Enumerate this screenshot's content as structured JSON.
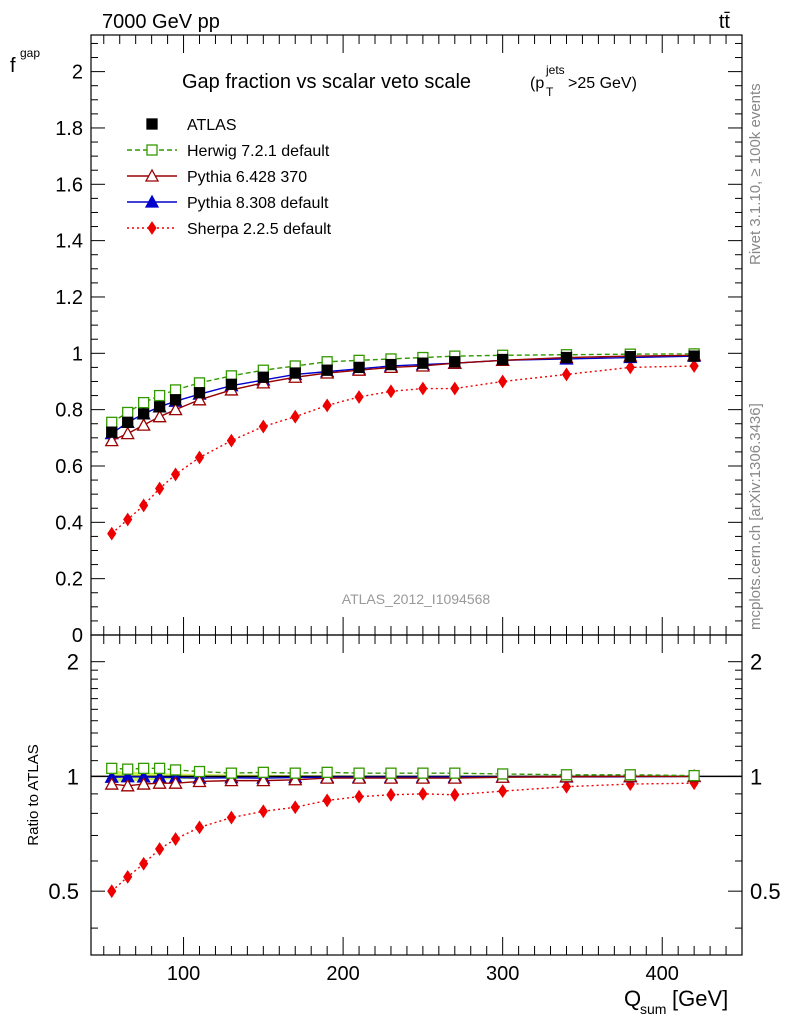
{
  "header": {
    "energy_label": "7000 GeV pp",
    "process_label": "tt̄"
  },
  "side_labels": {
    "rivet": "Rivet 3.1.10, ≥ 100k events",
    "mcplots": "mcplots.cern.ch [arXiv:1306.3436]"
  },
  "analysis_id": "ATLAS_2012_I1094568",
  "chart_data": [
    {
      "type": "line",
      "panel": "main",
      "title": "Gap fraction vs scalar veto scale",
      "title_suffix": {
        "p": "(p",
        "sub": "T",
        "sup": "jets",
        "rest": ">25 GeV)"
      },
      "ylabel": {
        "main": "f",
        "sub": "gap"
      },
      "xlim": [
        42,
        450
      ],
      "ylim": [
        0,
        2.13
      ],
      "yticks": [
        0,
        0.2,
        0.4,
        0.6,
        0.8,
        1,
        1.2,
        1.4,
        1.6,
        1.8,
        2
      ],
      "ytick_labels": [
        "0",
        "0.2",
        "0.4",
        "0.6",
        "0.8",
        "1",
        "1.2",
        "1.4",
        "1.6",
        "1.8",
        "2"
      ],
      "x": [
        55,
        65,
        75,
        85,
        95,
        110,
        130,
        150,
        170,
        190,
        210,
        230,
        250,
        270,
        300,
        340,
        380,
        420
      ],
      "legend_position": "top-left",
      "series": [
        {
          "name": "ATLAS",
          "color": "#000000",
          "marker": "filled-square",
          "line": "none",
          "values": [
            0.72,
            0.755,
            0.785,
            0.81,
            0.835,
            0.86,
            0.89,
            0.915,
            0.93,
            0.94,
            0.95,
            0.96,
            0.965,
            0.97,
            0.978,
            0.985,
            0.988,
            0.99
          ]
        },
        {
          "name": "Herwig 7.2.1 default",
          "color": "#339900",
          "marker": "open-square",
          "line": "dashed",
          "values": [
            0.755,
            0.79,
            0.825,
            0.85,
            0.87,
            0.895,
            0.92,
            0.94,
            0.955,
            0.97,
            0.975,
            0.98,
            0.985,
            0.99,
            0.993,
            0.995,
            0.997,
            0.998
          ]
        },
        {
          "name": "Pythia 6.428 370",
          "color": "#990000",
          "marker": "open-triangle",
          "line": "solid",
          "values": [
            0.69,
            0.715,
            0.745,
            0.775,
            0.8,
            0.835,
            0.87,
            0.895,
            0.915,
            0.93,
            0.94,
            0.95,
            0.955,
            0.965,
            0.975,
            0.985,
            0.99,
            0.993
          ]
        },
        {
          "name": "Pythia 8.308 default",
          "color": "#0000cc",
          "marker": "filled-triangle",
          "line": "solid",
          "values": [
            0.715,
            0.755,
            0.785,
            0.81,
            0.83,
            0.855,
            0.885,
            0.905,
            0.925,
            0.935,
            0.945,
            0.955,
            0.96,
            0.965,
            0.975,
            0.98,
            0.985,
            0.99
          ]
        },
        {
          "name": "Sherpa 2.2.5 default",
          "color": "#ee0000",
          "marker": "filled-diamond",
          "line": "dotted",
          "values": [
            0.36,
            0.41,
            0.46,
            0.52,
            0.57,
            0.63,
            0.69,
            0.74,
            0.775,
            0.815,
            0.845,
            0.865,
            0.875,
            0.875,
            0.9,
            0.925,
            0.95,
            0.955
          ]
        }
      ]
    },
    {
      "type": "line",
      "panel": "ratio",
      "ylabel": "Ratio to ATLAS",
      "xlabel": {
        "main": "Q",
        "sub": "sum",
        "rest": " [GeV]"
      },
      "xlim": [
        42,
        450
      ],
      "xticks": [
        100,
        200,
        300,
        400
      ],
      "xtick_labels": [
        "100",
        "200",
        "300",
        "400"
      ],
      "ylim": [
        0.34,
        2.35
      ],
      "yscale": "log",
      "yticks": [
        0.5,
        1,
        2
      ],
      "ytick_labels": [
        "0.5",
        "1",
        "2"
      ],
      "reference_band": {
        "color": "#ccf25a",
        "upper": [
          1.035,
          1.03,
          1.025,
          1.02,
          1.018,
          1.015,
          1.012,
          1.01,
          1.008,
          1.007,
          1.006,
          1.005,
          1.005,
          1.005,
          1.004,
          1.004,
          1.004,
          1.004
        ]
      },
      "x": [
        55,
        65,
        75,
        85,
        95,
        110,
        130,
        150,
        170,
        190,
        210,
        230,
        250,
        270,
        300,
        340,
        380,
        420
      ],
      "series": [
        {
          "name": "Herwig 7.2.1 default",
          "color": "#339900",
          "marker": "open-square",
          "line": "dashed",
          "values": [
            1.05,
            1.045,
            1.05,
            1.05,
            1.04,
            1.03,
            1.02,
            1.025,
            1.02,
            1.025,
            1.02,
            1.02,
            1.02,
            1.02,
            1.015,
            1.01,
            1.01,
            1.005
          ]
        },
        {
          "name": "Pythia 6.428 370",
          "color": "#990000",
          "marker": "open-triangle",
          "line": "solid",
          "values": [
            0.955,
            0.945,
            0.955,
            0.96,
            0.96,
            0.97,
            0.975,
            0.975,
            0.98,
            0.99,
            0.99,
            0.99,
            0.99,
            0.99,
            0.995,
            0.998,
            1.0,
            1.0
          ]
        },
        {
          "name": "Pythia 8.308 default",
          "color": "#0000cc",
          "marker": "filled-triangle",
          "line": "solid",
          "values": [
            0.995,
            0.998,
            0.997,
            0.995,
            0.993,
            0.99,
            0.992,
            0.99,
            0.993,
            0.995,
            0.995,
            0.995,
            0.996,
            0.996,
            0.997,
            0.997,
            0.998,
            1.0
          ]
        },
        {
          "name": "Sherpa 2.2.5 default",
          "color": "#ee0000",
          "marker": "filled-diamond",
          "line": "dotted",
          "values": [
            0.5,
            0.545,
            0.59,
            0.645,
            0.685,
            0.735,
            0.78,
            0.81,
            0.83,
            0.865,
            0.885,
            0.895,
            0.9,
            0.895,
            0.915,
            0.94,
            0.955,
            0.96
          ]
        }
      ]
    }
  ]
}
